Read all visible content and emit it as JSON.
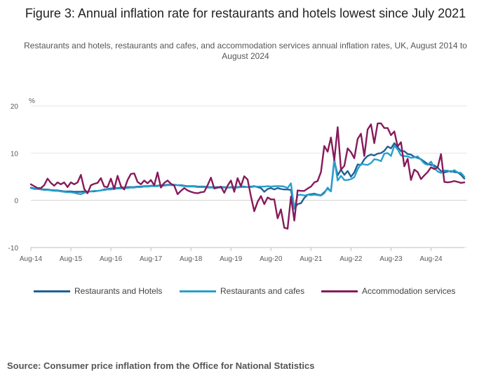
{
  "title": "Figure 3: Annual inflation rate for restaurants and hotels lowest since July 2021",
  "subtitle": "Restaurants and hotels, restaurants and cafes, and accommodation services annual inflation rates, UK, August 2014 to August 2024",
  "source": "Source: Consumer price inflation from the Office for National Statistics",
  "chart_data": {
    "type": "line",
    "ylabel": "%",
    "ylim": [
      -10,
      20
    ],
    "yticks": [
      -10,
      0,
      10,
      20
    ],
    "xstart": "Aug-14",
    "xticks": [
      "Aug-14",
      "Aug-15",
      "Aug-16",
      "Aug-17",
      "Aug-18",
      "Aug-19",
      "Aug-20",
      "Aug-21",
      "Aug-22",
      "Aug-23",
      "Aug-24"
    ],
    "grid": "horizontal",
    "legend_position": "bottom",
    "series": [
      {
        "name": "Restaurants and Hotels",
        "color": "#206095",
        "values": [
          2.7,
          2.5,
          2.5,
          2.4,
          2.3,
          2.3,
          2.2,
          2.1,
          2.1,
          2.0,
          1.9,
          1.9,
          1.9,
          1.8,
          1.8,
          1.8,
          1.9,
          1.8,
          1.9,
          1.9,
          2.0,
          2.1,
          2.3,
          2.4,
          2.5,
          2.6,
          2.6,
          2.7,
          2.7,
          2.8,
          2.8,
          2.8,
          2.9,
          2.9,
          3.0,
          3.0,
          3.1,
          3.1,
          3.1,
          3.2,
          3.2,
          3.3,
          3.3,
          3.3,
          3.2,
          3.2,
          3.1,
          3.0,
          3.0,
          3.0,
          2.9,
          2.9,
          2.9,
          2.8,
          2.8,
          2.8,
          2.8,
          2.8,
          2.8,
          2.7,
          2.8,
          2.8,
          2.8,
          2.9,
          2.9,
          2.8,
          2.9,
          3.0,
          2.8,
          2.6,
          1.8,
          2.4,
          2.6,
          2.3,
          2.6,
          2.4,
          2.3,
          2.3,
          2.2,
          -1.7,
          -0.8,
          -0.6,
          0.5,
          1.2,
          1.3,
          1.4,
          1.2,
          1.1,
          1.7,
          2.5,
          1.9,
          8.4,
          5.3,
          6.5,
          5.4,
          6.2,
          5.0,
          5.9,
          7.6,
          7.5,
          8.7,
          9.4,
          9.7,
          9.5,
          9.9,
          10.0,
          10.5,
          11.4,
          11.0,
          12.1,
          11.3,
          10.4,
          10.4,
          9.8,
          9.7,
          9.2,
          9.0,
          8.7,
          8.2,
          7.7,
          7.5,
          7.4,
          6.9,
          6.2,
          5.9,
          6.1,
          6.2,
          6.0,
          5.9,
          5.4,
          4.6
        ]
      },
      {
        "name": "Restaurants and cafes",
        "color": "#27a0cc",
        "values": [
          2.6,
          2.4,
          2.4,
          2.3,
          2.2,
          2.2,
          2.1,
          2.0,
          2.0,
          1.9,
          1.8,
          1.7,
          1.7,
          1.6,
          1.4,
          1.3,
          1.6,
          1.8,
          1.9,
          2.0,
          2.0,
          2.1,
          2.2,
          2.3,
          2.3,
          2.4,
          2.5,
          2.5,
          2.6,
          2.6,
          2.7,
          2.7,
          2.8,
          2.8,
          2.9,
          2.9,
          3.0,
          3.0,
          3.0,
          3.1,
          3.1,
          3.2,
          3.2,
          3.2,
          3.2,
          3.1,
          3.0,
          2.9,
          2.9,
          2.9,
          2.8,
          2.8,
          2.8,
          2.7,
          2.7,
          2.7,
          2.7,
          2.7,
          2.7,
          2.7,
          2.7,
          2.7,
          2.7,
          2.8,
          2.8,
          2.8,
          2.8,
          2.9,
          2.9,
          2.9,
          2.9,
          3.0,
          2.9,
          3.0,
          3.0,
          3.0,
          2.9,
          2.6,
          3.6,
          -1.8,
          1.1,
          1.2,
          1.0,
          1.2,
          1.1,
          1.2,
          1.1,
          1.0,
          1.5,
          2.7,
          1.9,
          8.8,
          4.2,
          5.2,
          4.3,
          4.3,
          4.5,
          4.9,
          6.6,
          7.7,
          7.6,
          7.5,
          7.9,
          8.7,
          8.6,
          8.3,
          9.9,
          10.0,
          9.4,
          11.6,
          10.8,
          9.5,
          9.4,
          9.3,
          9.0,
          9.1,
          9.3,
          8.6,
          7.8,
          7.5,
          8.2,
          6.9,
          6.1,
          5.8,
          6.3,
          6.3,
          6.0,
          6.4,
          5.9,
          5.8,
          5.0
        ]
      },
      {
        "name": "Accommodation services",
        "color": "#871a5b",
        "values": [
          3.4,
          3.0,
          2.6,
          2.6,
          3.2,
          4.6,
          3.7,
          3.1,
          3.8,
          3.4,
          3.8,
          2.8,
          3.8,
          3.4,
          3.8,
          5.4,
          2.4,
          1.5,
          3.2,
          3.5,
          3.7,
          4.7,
          2.9,
          2.8,
          4.6,
          2.4,
          5.2,
          3.0,
          2.3,
          4.3,
          5.6,
          5.7,
          3.9,
          3.4,
          4.2,
          3.6,
          4.3,
          3.2,
          5.9,
          2.7,
          3.7,
          4.2,
          3.5,
          3.1,
          1.3,
          2.0,
          2.6,
          2.1,
          1.8,
          1.6,
          1.5,
          1.7,
          1.8,
          3.2,
          4.8,
          2.5,
          2.7,
          2.9,
          1.6,
          3.1,
          4.2,
          1.8,
          4.7,
          3.0,
          5.1,
          4.4,
          0.8,
          -2.3,
          -0.3,
          0.9,
          -0.8,
          0.6,
          0.2,
          0.2,
          -3.8,
          -1.9,
          -5.8,
          -6.0,
          0.8,
          -4.3,
          2.1,
          2.0,
          2.0,
          2.5,
          2.9,
          3.8,
          4.1,
          6.0,
          11.5,
          10.3,
          13.3,
          8.5,
          15.5,
          6.5,
          7.3,
          11.0,
          10.2,
          8.9,
          13.0,
          14.1,
          9.4,
          15.0,
          16.1,
          12.1,
          16.3,
          16.3,
          15.3,
          15.3,
          13.8,
          14.6,
          11.4,
          12.3,
          7.2,
          8.8,
          4.3,
          6.5,
          6.0,
          4.5,
          5.3,
          6.0,
          7.0,
          6.6,
          7.0,
          9.8,
          3.9,
          3.8,
          3.9,
          4.1,
          3.9,
          3.7,
          3.8
        ]
      }
    ]
  }
}
